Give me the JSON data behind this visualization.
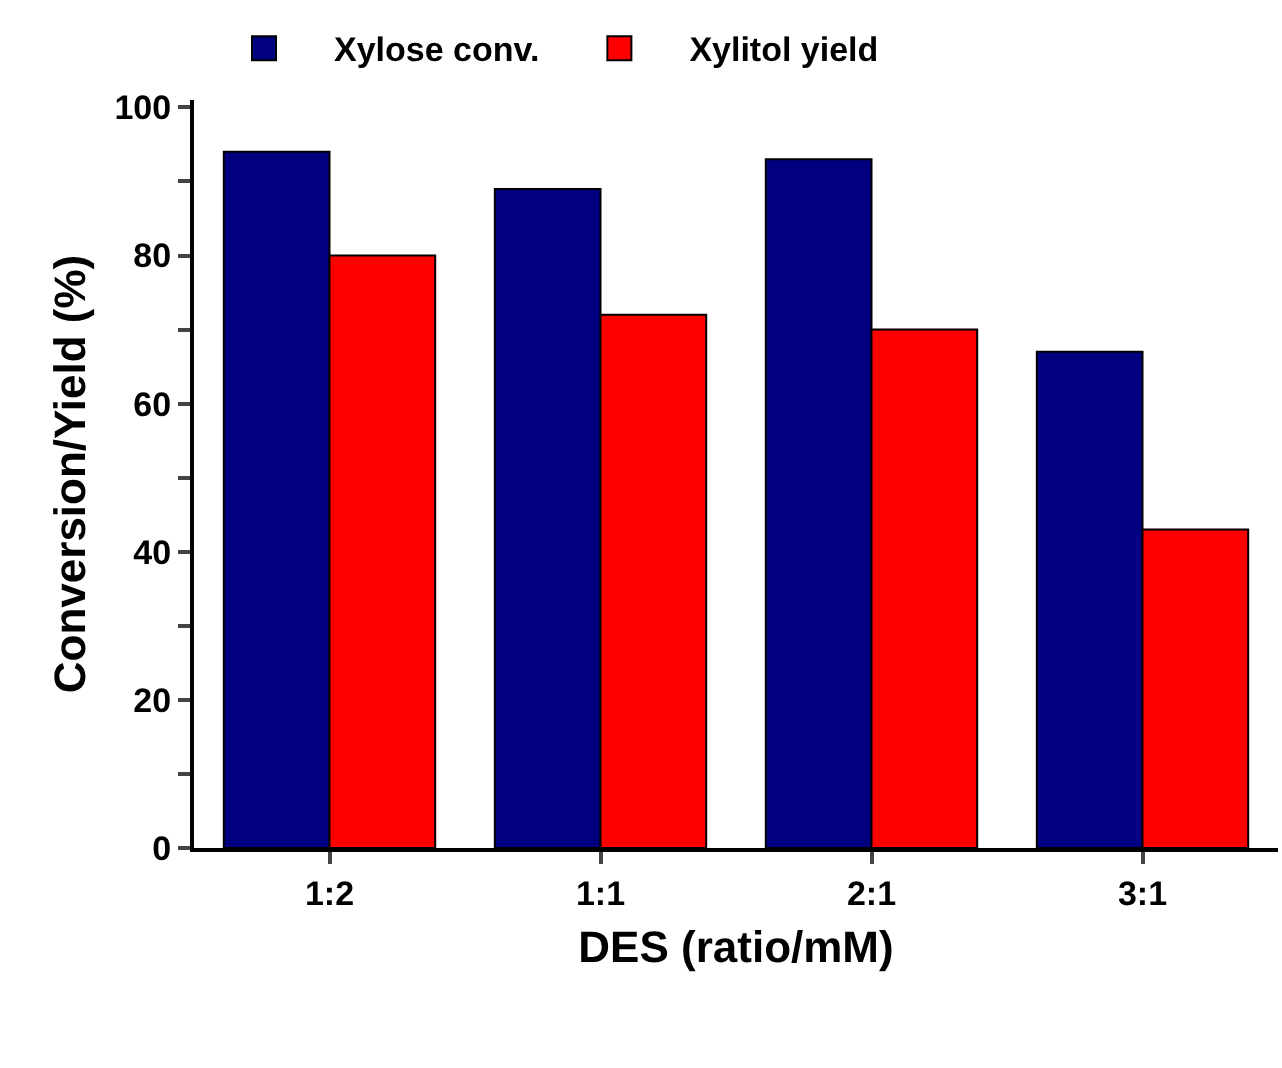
{
  "chart_data": {
    "type": "bar",
    "xlabel": "DES (ratio/mM)",
    "ylabel": "Conversion/Yield (%)",
    "categories": [
      "1:2",
      "1:1",
      "2:1",
      "3:1"
    ],
    "series": [
      {
        "name": "Xylose conv.",
        "color": "#000080",
        "values": [
          94,
          89,
          93,
          67
        ]
      },
      {
        "name": "Xylitol yield",
        "color": "#ff0000",
        "values": [
          80,
          72,
          70,
          43
        ]
      }
    ],
    "ylim": [
      0,
      101
    ],
    "yticks": [
      0,
      {
        "value": 10,
        "label": null
      },
      20,
      {
        "value": 30,
        "label": null
      },
      40,
      {
        "value": 50,
        "label": null
      },
      60,
      {
        "value": 70,
        "label": null
      },
      80,
      {
        "value": 90,
        "label": null
      },
      100
    ],
    "grid": false,
    "legend": "top left"
  }
}
